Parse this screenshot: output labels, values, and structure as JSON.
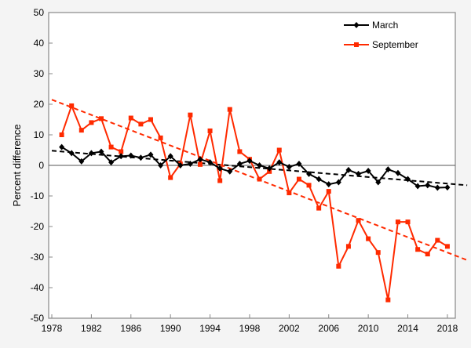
{
  "chart_data": {
    "type": "line",
    "title": "",
    "xlabel": "",
    "ylabel": "Percent difference",
    "xlim": [
      1978,
      2018.8
    ],
    "ylim": [
      -50,
      50
    ],
    "xticks": [
      1978,
      1982,
      1986,
      1990,
      1994,
      1998,
      2002,
      2006,
      2010,
      2014,
      2018
    ],
    "yticks": [
      -50,
      -40,
      -30,
      -20,
      -10,
      0,
      10,
      20,
      30,
      40,
      50
    ],
    "grid": false,
    "legend_position": "top-right",
    "x": [
      1979,
      1980,
      1981,
      1982,
      1983,
      1984,
      1985,
      1986,
      1987,
      1988,
      1989,
      1990,
      1991,
      1992,
      1993,
      1994,
      1995,
      1996,
      1997,
      1998,
      1999,
      2000,
      2001,
      2002,
      2003,
      2004,
      2005,
      2006,
      2007,
      2008,
      2009,
      2010,
      2011,
      2012,
      2013,
      2014,
      2015,
      2016,
      2017,
      2018
    ],
    "series": [
      {
        "name": "March",
        "color": "#000000",
        "marker": "diamond",
        "values": [
          6,
          4,
          1.3,
          4,
          4.5,
          1,
          3,
          3.2,
          2.5,
          3.5,
          0,
          3,
          0,
          0.5,
          2,
          1,
          -1,
          -2,
          0.5,
          1.5,
          0,
          -1,
          1,
          -0.5,
          0.5,
          -2.8,
          -4.5,
          -6.2,
          -5.5,
          -1.5,
          -2.8,
          -1.8,
          -5.5,
          -1.3,
          -2.5,
          -4.5,
          -6.8,
          -6.5,
          -7.3,
          -7.2
        ],
        "trend": {
          "x": [
            1978,
            2020
          ],
          "y": [
            4.8,
            -6.5
          ]
        }
      },
      {
        "name": "September",
        "color": "#ff2a00",
        "marker": "square",
        "values": [
          10,
          19.5,
          11.5,
          14,
          15.3,
          6,
          4.5,
          15.5,
          13.5,
          15,
          9,
          -4,
          0.5,
          16.5,
          0.3,
          11.3,
          -5,
          18.3,
          4.5,
          2,
          -4.5,
          -2,
          5,
          -9,
          -4.5,
          -6.5,
          -14,
          -8.5,
          -33,
          -26.5,
          -18,
          -24,
          -28.5,
          -44,
          -18.5,
          -18.5,
          -27.5,
          -29,
          -24.5,
          -26.5
        ],
        "trend": {
          "x": [
            1978,
            2020
          ],
          "y": [
            21.5,
            -31
          ]
        }
      }
    ]
  }
}
